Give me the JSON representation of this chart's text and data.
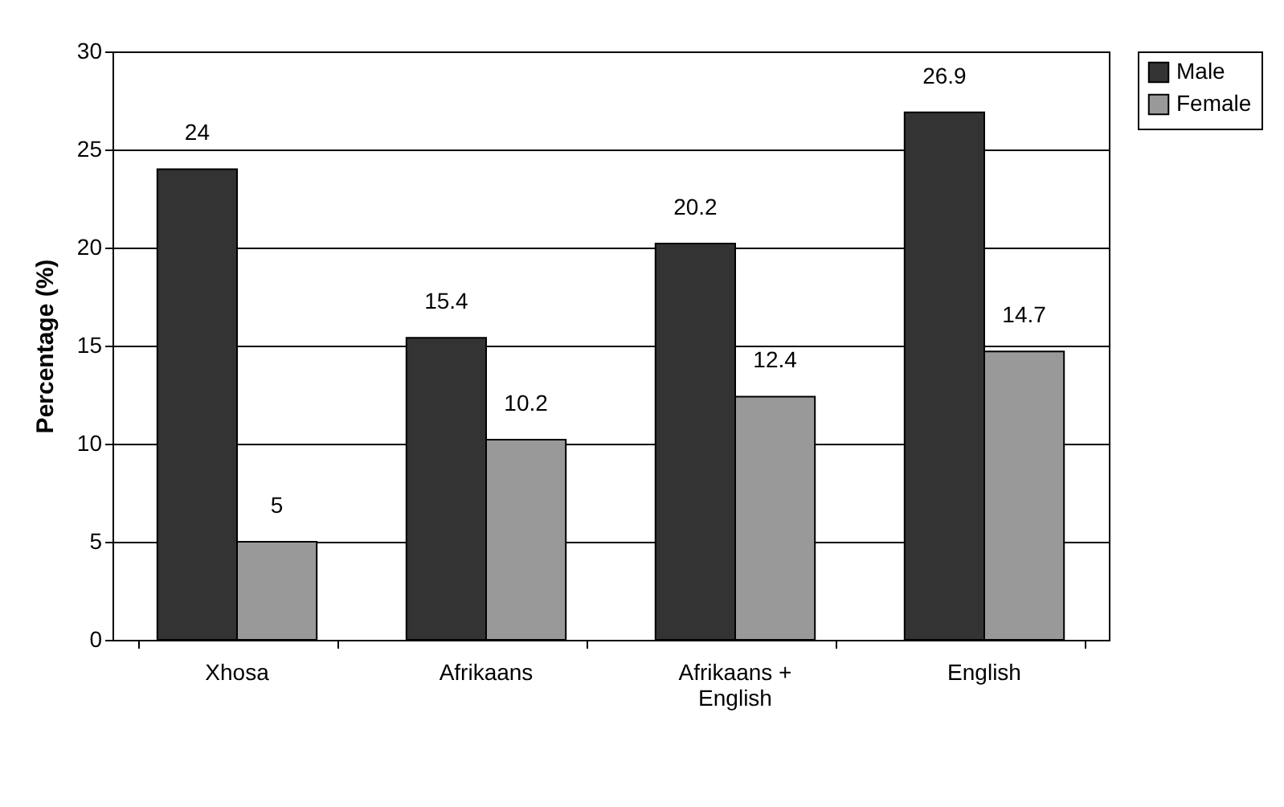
{
  "chart_data": {
    "type": "bar",
    "ylabel": "Percentage (%)",
    "categories": [
      "Xhosa",
      "Afrikaans",
      "Afrikaans + English",
      "English"
    ],
    "series": [
      {
        "name": "Male",
        "color": "#333333",
        "values": [
          24,
          15.4,
          20.2,
          26.9
        ]
      },
      {
        "name": "Female",
        "color": "#999999",
        "values": [
          5,
          10.2,
          12.4,
          14.7
        ]
      }
    ],
    "ylim": [
      0,
      30
    ],
    "yticks": [
      0,
      5,
      10,
      15,
      20,
      25,
      30
    ],
    "grid": "y",
    "legend": "right",
    "data_labels": true
  }
}
